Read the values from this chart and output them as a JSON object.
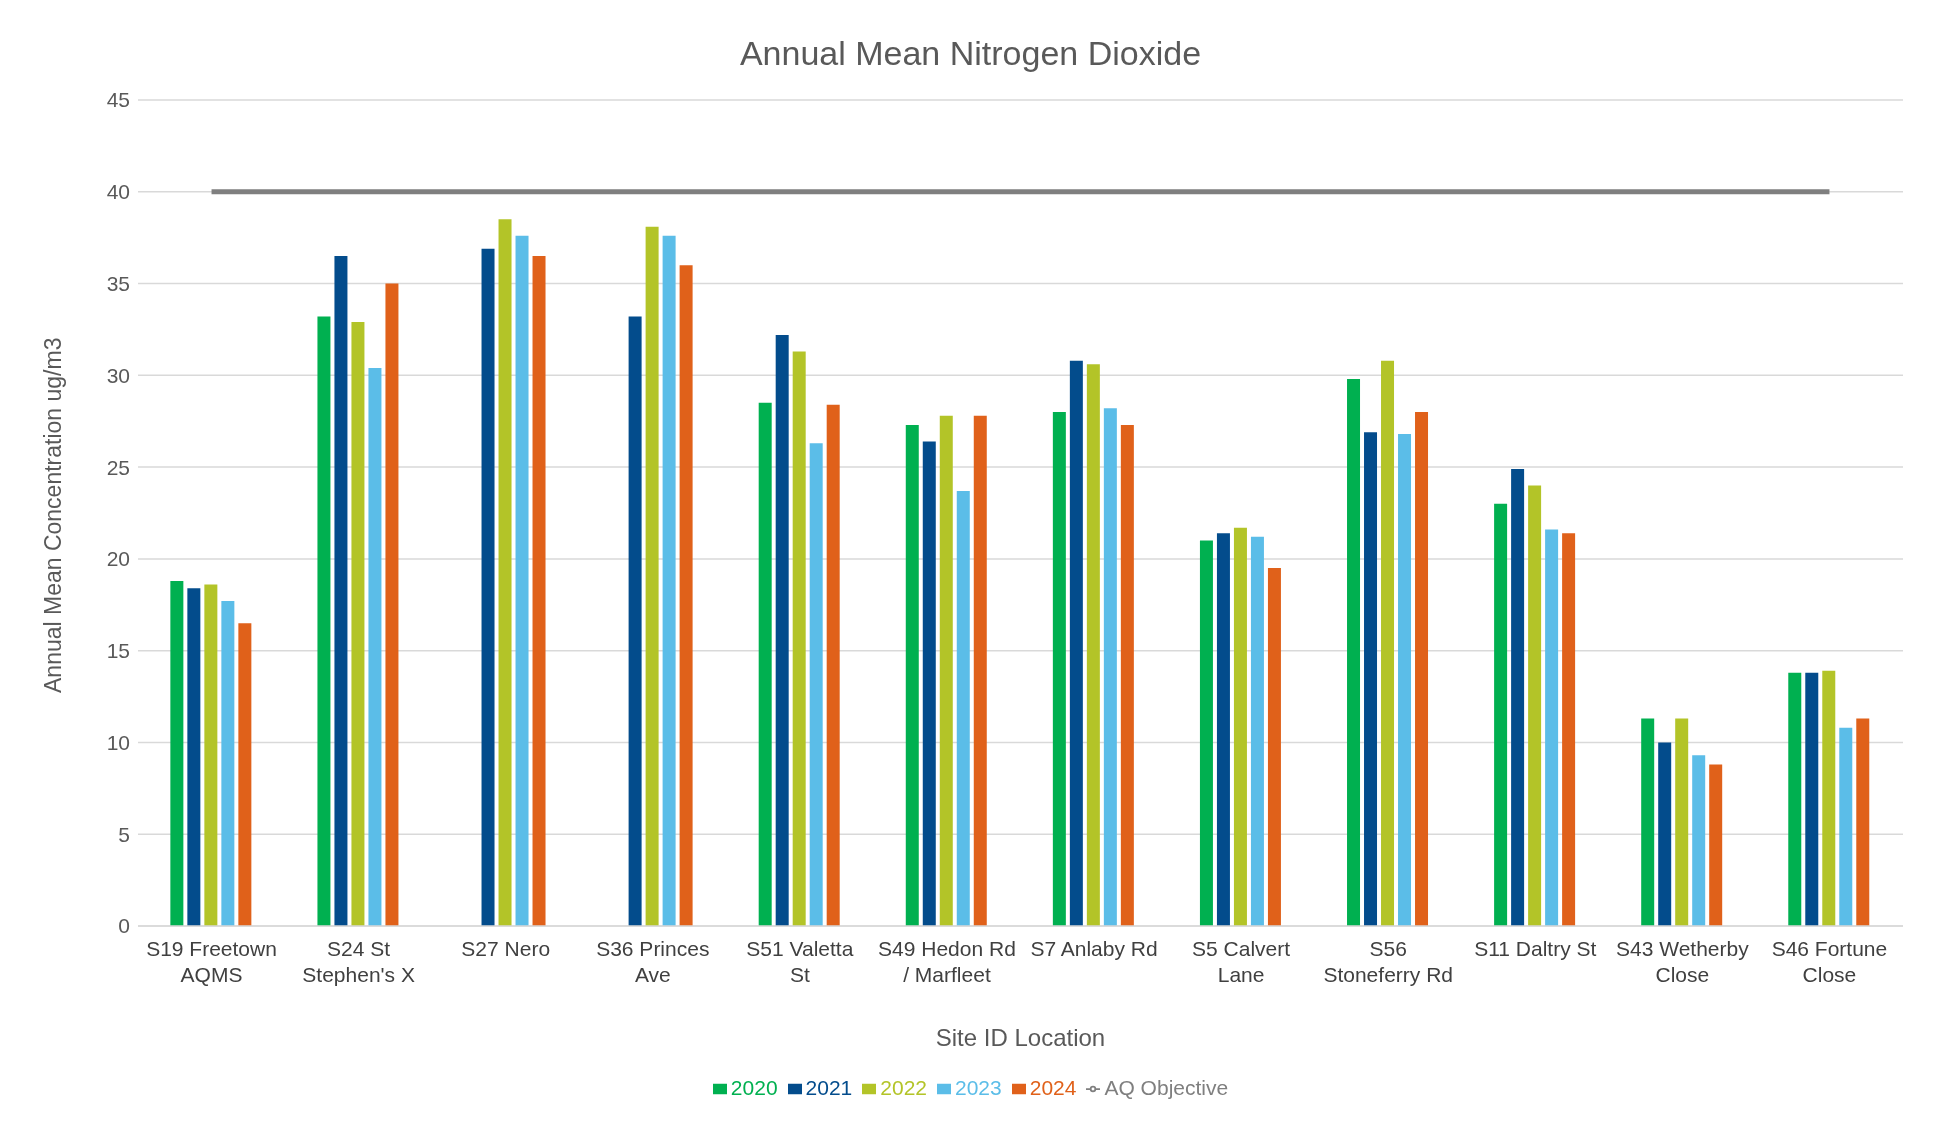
{
  "chart_data": {
    "type": "bar",
    "title": "Annual Mean Nitrogen Dioxide",
    "xlabel": "Site ID Location",
    "ylabel": "Annual Mean Concentration ug/m3",
    "categories": [
      "S19 Freetown AQMS",
      "S24 St Stephen's X",
      "S27 Nero",
      "S36 Princes Ave",
      "S51 Valetta St",
      "S49 Hedon Rd / Marfleet",
      "S7 Anlaby Rd",
      "S5 Calvert Lane",
      "S56 Stoneferry Rd",
      "S11 Daltry St",
      "S43 Wetherby Close",
      "S46 Fortune Close"
    ],
    "series": [
      {
        "name": "2020",
        "color": "#00b050",
        "values": [
          18.8,
          33.2,
          null,
          null,
          28.5,
          27.3,
          28.0,
          21.0,
          29.8,
          23.0,
          11.3,
          13.8
        ]
      },
      {
        "name": "2021",
        "color": "#034c8c",
        "values": [
          18.4,
          36.5,
          36.9,
          33.2,
          32.2,
          26.4,
          30.8,
          21.4,
          26.9,
          24.9,
          10.0,
          13.8
        ]
      },
      {
        "name": "2022",
        "color": "#b3c428",
        "values": [
          18.6,
          32.9,
          38.5,
          38.1,
          31.3,
          27.8,
          30.6,
          21.7,
          30.8,
          24.0,
          11.3,
          13.9
        ]
      },
      {
        "name": "2023",
        "color": "#5bbde8",
        "values": [
          17.7,
          30.4,
          37.6,
          37.6,
          26.3,
          23.7,
          28.2,
          21.2,
          26.8,
          21.6,
          9.3,
          10.8
        ]
      },
      {
        "name": "2024",
        "color": "#e0611a",
        "values": [
          16.5,
          35.0,
          36.5,
          36.0,
          28.4,
          27.8,
          27.3,
          19.5,
          28.0,
          21.4,
          8.8,
          11.3
        ]
      },
      {
        "name": "AQ Objective",
        "color": "#7f7f7f",
        "type": "line",
        "values": [
          40,
          40,
          40,
          40,
          40,
          40,
          40,
          40,
          40,
          40,
          40,
          40
        ]
      }
    ],
    "ylim": [
      0,
      45
    ],
    "yticks": [
      0,
      5,
      10,
      15,
      20,
      25,
      30,
      35,
      40,
      45
    ],
    "grid": "y",
    "legend": "bottom",
    "marker": "none"
  }
}
